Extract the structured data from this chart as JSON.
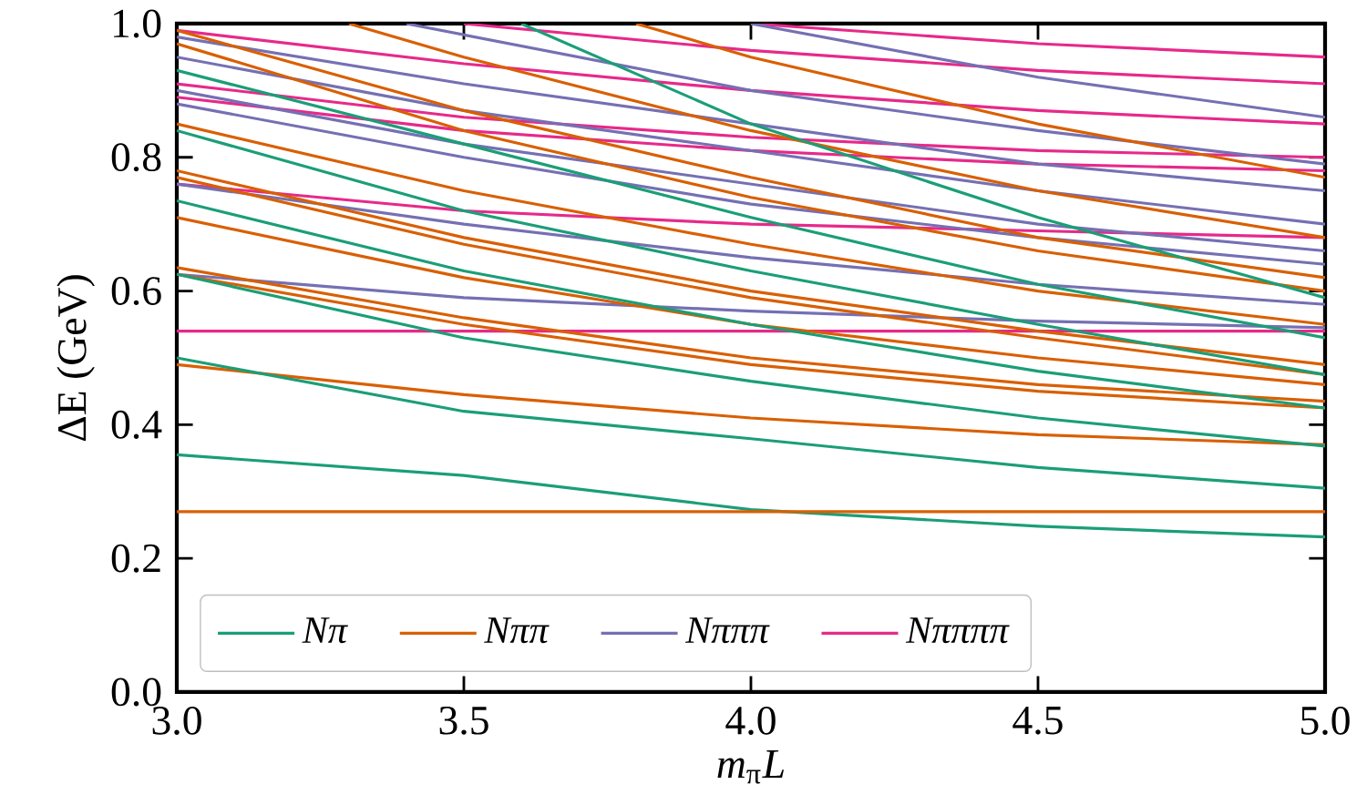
{
  "chart_data": {
    "type": "line",
    "xlabel": "*m*$_{π}$*L*",
    "ylabel": "ΔE (GeV)",
    "xlim": [
      3,
      5
    ],
    "ylim": [
      0,
      1
    ],
    "xticks": [
      {
        "value": 3,
        "label": "3.0"
      },
      {
        "value": 3.5,
        "label": "3.5"
      },
      {
        "value": 4,
        "label": "4.0"
      },
      {
        "value": 4.5,
        "label": "4.5"
      },
      {
        "value": 5,
        "label": "5.0"
      }
    ],
    "yticks": [
      {
        "value": 0,
        "label": "0.0"
      },
      {
        "value": 0.2,
        "label": "0.2"
      },
      {
        "value": 0.4,
        "label": "0.4"
      },
      {
        "value": 0.6,
        "label": "0.6"
      },
      {
        "value": 0.8,
        "label": "0.8"
      },
      {
        "value": 1,
        "label": "1.0"
      }
    ],
    "legend": "bottom left",
    "x": [
      3,
      3.5,
      4,
      4.5,
      5
    ],
    "series": [
      {
        "name": "Nπ",
        "color": "#1b9e77",
        "values": [
          0.355,
          0.324,
          0.273,
          0.248,
          0.232
        ]
      },
      {
        "name": "Nππ",
        "color": "#d95f02",
        "values": [
          0.27,
          0.27,
          0.27,
          0.27,
          0.27
        ]
      },
      {
        "name": "Nπππ",
        "color": "#7570b3",
        "values": [
          0.625,
          0.59,
          0.57,
          0.555,
          0.545
        ]
      },
      {
        "name": "Nππππ",
        "color": "#e7298a",
        "values": [
          0.54,
          0.54,
          0.54,
          0.54,
          0.54
        ]
      },
      {
        "color": "#1b9e77",
        "values": [
          0.5,
          0.42,
          0.379,
          0.336,
          0.305
        ]
      },
      {
        "color": "#1b9e77",
        "values": [
          0.625,
          0.53,
          0.465,
          0.41,
          0.368
        ]
      },
      {
        "color": "#1b9e77",
        "values": [
          0.735,
          0.63,
          0.55,
          0.48,
          0.425
        ]
      },
      {
        "color": "#1b9e77",
        "values": [
          0.84,
          0.72,
          0.63,
          0.55,
          0.475
        ]
      },
      {
        "color": "#1b9e77",
        "values": [
          0.93,
          0.82,
          0.71,
          0.61,
          0.53
        ]
      },
      {
        "color": "#1b9e77",
        "x": [
          3.6,
          4,
          4.5,
          5
        ],
        "values": [
          1.0,
          0.85,
          0.71,
          0.59
        ]
      },
      {
        "color": "#d95f02",
        "values": [
          0.49,
          0.445,
          0.41,
          0.385,
          0.37
        ]
      },
      {
        "color": "#d95f02",
        "values": [
          0.635,
          0.56,
          0.5,
          0.46,
          0.435
        ]
      },
      {
        "color": "#d95f02",
        "values": [
          0.625,
          0.55,
          0.49,
          0.45,
          0.425
        ]
      },
      {
        "color": "#d95f02",
        "values": [
          0.78,
          0.68,
          0.6,
          0.54,
          0.49
        ]
      },
      {
        "color": "#d95f02",
        "values": [
          0.77,
          0.67,
          0.59,
          0.53,
          0.475
        ]
      },
      {
        "color": "#d95f02",
        "values": [
          0.71,
          0.62,
          0.55,
          0.5,
          0.46
        ]
      },
      {
        "color": "#d95f02",
        "values": [
          0.85,
          0.75,
          0.67,
          0.6,
          0.55
        ]
      },
      {
        "color": "#d95f02",
        "values": [
          0.97,
          0.84,
          0.74,
          0.66,
          0.6
        ]
      },
      {
        "color": "#d95f02",
        "values": [
          0.99,
          0.87,
          0.77,
          0.68,
          0.62
        ]
      },
      {
        "color": "#d95f02",
        "x": [
          3.3,
          3.5,
          4,
          4.5,
          5
        ],
        "values": [
          1.0,
          0.95,
          0.84,
          0.75,
          0.68
        ]
      },
      {
        "color": "#d95f02",
        "x": [
          3.8,
          4,
          4.5,
          5
        ],
        "values": [
          1.0,
          0.95,
          0.85,
          0.77
        ]
      },
      {
        "color": "#7570b3",
        "values": [
          0.76,
          0.7,
          0.65,
          0.61,
          0.58
        ]
      },
      {
        "color": "#7570b3",
        "values": [
          0.88,
          0.8,
          0.73,
          0.68,
          0.64
        ]
      },
      {
        "color": "#7570b3",
        "values": [
          0.9,
          0.82,
          0.76,
          0.7,
          0.66
        ]
      },
      {
        "color": "#7570b3",
        "values": [
          0.95,
          0.87,
          0.81,
          0.75,
          0.7
        ]
      },
      {
        "color": "#7570b3",
        "values": [
          0.98,
          0.91,
          0.85,
          0.79,
          0.75
        ]
      },
      {
        "color": "#7570b3",
        "x": [
          3.4,
          4,
          4.5,
          5
        ],
        "values": [
          1.0,
          0.9,
          0.84,
          0.79
        ]
      },
      {
        "color": "#7570b3",
        "x": [
          4,
          4.5,
          5
        ],
        "values": [
          1.0,
          0.92,
          0.86
        ]
      },
      {
        "color": "#e7298a",
        "values": [
          0.76,
          0.72,
          0.7,
          0.69,
          0.68
        ]
      },
      {
        "color": "#e7298a",
        "values": [
          0.89,
          0.84,
          0.81,
          0.79,
          0.78
        ]
      },
      {
        "color": "#e7298a",
        "values": [
          0.91,
          0.86,
          0.83,
          0.81,
          0.8
        ]
      },
      {
        "color": "#e7298a",
        "values": [
          0.99,
          0.94,
          0.9,
          0.87,
          0.85
        ]
      },
      {
        "color": "#e7298a",
        "x": [
          3.5,
          4,
          4.5,
          5
        ],
        "values": [
          1.0,
          0.96,
          0.93,
          0.91
        ]
      },
      {
        "color": "#e7298a",
        "x": [
          4,
          4.5,
          5
        ],
        "values": [
          1.0,
          0.97,
          0.95
        ]
      }
    ]
  }
}
